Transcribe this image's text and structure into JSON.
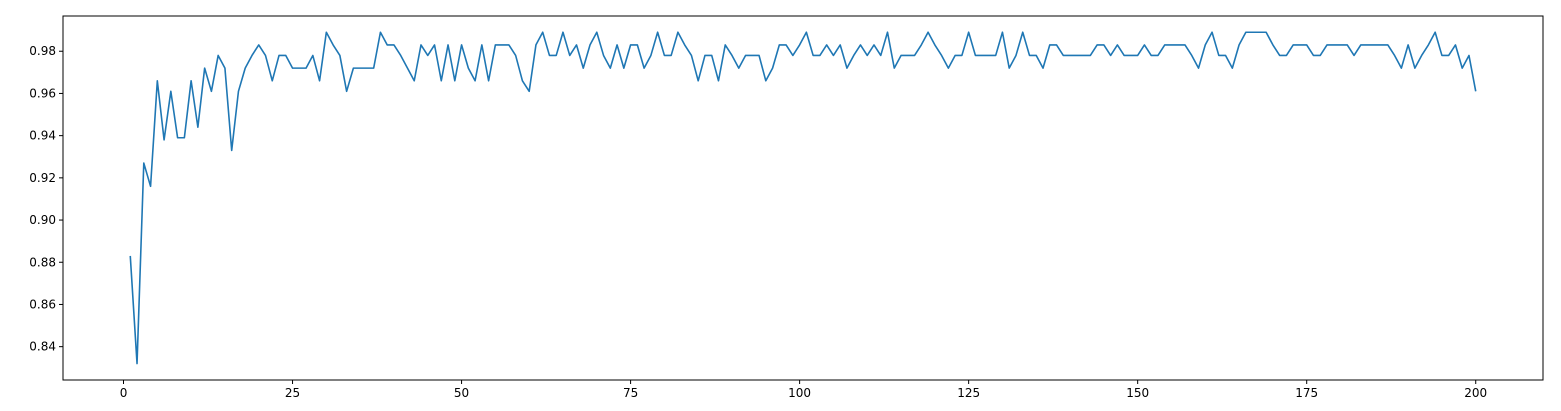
{
  "chart_data": {
    "type": "line",
    "title": "",
    "xlabel": "",
    "ylabel": "",
    "xlim": [
      -8.95,
      209.95
    ],
    "ylim": [
      0.8242,
      0.9967
    ],
    "xticks": [
      0,
      25,
      50,
      75,
      100,
      125,
      150,
      175,
      200
    ],
    "xtick_labels": [
      "0",
      "25",
      "50",
      "75",
      "100",
      "125",
      "150",
      "175",
      "200"
    ],
    "yticks": [
      0.84,
      0.86,
      0.88,
      0.9,
      0.92,
      0.94,
      0.96,
      0.98
    ],
    "ytick_labels": [
      "0.84",
      "0.86",
      "0.88",
      "0.90",
      "0.92",
      "0.94",
      "0.96",
      "0.98"
    ],
    "grid": false,
    "series": [
      {
        "color": "#1f77b4",
        "x": [
          1,
          2,
          3,
          4,
          5,
          6,
          7,
          8,
          9,
          10,
          11,
          12,
          13,
          14,
          15,
          16,
          17,
          18,
          19,
          20,
          21,
          22,
          23,
          24,
          25,
          26,
          27,
          28,
          29,
          30,
          31,
          32,
          33,
          34,
          35,
          36,
          37,
          38,
          39,
          40,
          41,
          42,
          43,
          44,
          45,
          46,
          47,
          48,
          49,
          50,
          51,
          52,
          53,
          54,
          55,
          56,
          57,
          58,
          59,
          60,
          61,
          62,
          63,
          64,
          65,
          66,
          67,
          68,
          69,
          70,
          71,
          72,
          73,
          74,
          75,
          76,
          77,
          78,
          79,
          80,
          81,
          82,
          83,
          84,
          85,
          86,
          87,
          88,
          89,
          90,
          91,
          92,
          93,
          94,
          95,
          96,
          97,
          98,
          99,
          100,
          101,
          102,
          103,
          104,
          105,
          106,
          107,
          108,
          109,
          110,
          111,
          112,
          113,
          114,
          115,
          116,
          117,
          118,
          119,
          120,
          121,
          122,
          123,
          124,
          125,
          126,
          127,
          128,
          129,
          130,
          131,
          132,
          133,
          134,
          135,
          136,
          137,
          138,
          139,
          140,
          141,
          142,
          143,
          144,
          145,
          146,
          147,
          148,
          149,
          150,
          151,
          152,
          153,
          154,
          155,
          156,
          157,
          158,
          159,
          160,
          161,
          162,
          163,
          164,
          165,
          166,
          167,
          168,
          169,
          170,
          171,
          172,
          173,
          174,
          175,
          176,
          177,
          178,
          179,
          180,
          181,
          182,
          183,
          184,
          185,
          186,
          187,
          188,
          189,
          190,
          191,
          192,
          193,
          194,
          195,
          196,
          197,
          198,
          199,
          200
        ],
        "y": [
          0.883,
          0.832,
          0.927,
          0.916,
          0.966,
          0.938,
          0.961,
          0.939,
          0.939,
          0.966,
          0.944,
          0.972,
          0.961,
          0.978,
          0.972,
          0.933,
          0.961,
          0.972,
          0.978,
          0.983,
          0.978,
          0.966,
          0.978,
          0.978,
          0.972,
          0.972,
          0.972,
          0.978,
          0.966,
          0.989,
          0.983,
          0.978,
          0.961,
          0.972,
          0.972,
          0.972,
          0.972,
          0.989,
          0.983,
          0.983,
          0.978,
          0.972,
          0.966,
          0.983,
          0.978,
          0.983,
          0.966,
          0.983,
          0.966,
          0.983,
          0.972,
          0.966,
          0.983,
          0.966,
          0.983,
          0.983,
          0.983,
          0.978,
          0.966,
          0.961,
          0.983,
          0.989,
          0.978,
          0.978,
          0.989,
          0.978,
          0.983,
          0.972,
          0.983,
          0.989,
          0.978,
          0.972,
          0.983,
          0.972,
          0.983,
          0.983,
          0.972,
          0.978,
          0.989,
          0.978,
          0.978,
          0.989,
          0.983,
          0.978,
          0.966,
          0.978,
          0.978,
          0.966,
          0.983,
          0.978,
          0.972,
          0.978,
          0.978,
          0.978,
          0.966,
          0.972,
          0.983,
          0.983,
          0.978,
          0.983,
          0.989,
          0.978,
          0.978,
          0.983,
          0.978,
          0.983,
          0.972,
          0.978,
          0.983,
          0.978,
          0.983,
          0.978,
          0.989,
          0.972,
          0.978,
          0.978,
          0.978,
          0.983,
          0.989,
          0.983,
          0.978,
          0.972,
          0.978,
          0.978,
          0.989,
          0.978,
          0.978,
          0.978,
          0.978,
          0.989,
          0.972,
          0.978,
          0.989,
          0.978,
          0.978,
          0.972,
          0.983,
          0.983,
          0.978,
          0.978,
          0.978,
          0.978,
          0.978,
          0.983,
          0.983,
          0.978,
          0.983,
          0.978,
          0.978,
          0.978,
          0.983,
          0.978,
          0.978,
          0.983,
          0.983,
          0.983,
          0.983,
          0.978,
          0.972,
          0.983,
          0.989,
          0.978,
          0.978,
          0.972,
          0.983,
          0.989,
          0.989,
          0.989,
          0.989,
          0.983,
          0.978,
          0.978,
          0.983,
          0.983,
          0.983,
          0.978,
          0.978,
          0.983,
          0.983,
          0.983,
          0.983,
          0.978,
          0.983,
          0.983,
          0.983,
          0.983,
          0.983,
          0.978,
          0.972,
          0.983,
          0.972,
          0.978,
          0.983,
          0.989,
          0.978,
          0.978,
          0.983,
          0.972,
          0.978,
          0.961
        ]
      }
    ]
  }
}
